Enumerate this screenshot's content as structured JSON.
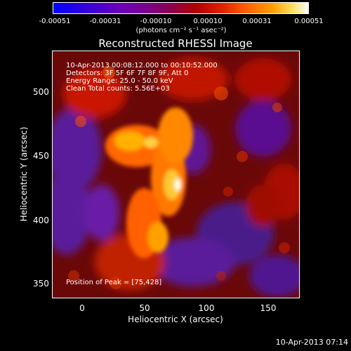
{
  "colorbar": {
    "ticks": [
      "-0.00051",
      "-0.00031",
      "-0.00010",
      "0.00010",
      "0.00031",
      "0.00051"
    ],
    "unit": "(photons cm⁻² s⁻¹ asec⁻²)"
  },
  "chart_data": {
    "type": "heatmap",
    "title": "Reconstructed RHESSI Image",
    "xlabel": "Heliocentric X (arcsec)",
    "ylabel": "Heliocentric Y (arcsec)",
    "xlim": [
      -20,
      170
    ],
    "ylim": [
      340,
      530
    ],
    "xticks": [
      "0",
      "50",
      "100",
      "150"
    ],
    "yticks": [
      "350",
      "400",
      "450",
      "500"
    ],
    "annotations": {
      "time_range": "10-Apr-2013 00:08:12.000 to 00:10:52.000",
      "detectors": "Detectors: 3F 5F 6F 7F 8F 9F, Att 0",
      "energy": "Energy Range: 25.0 - 50.0 keV",
      "clean": "Clean     Total counts: 5.56E+03",
      "peak": "Position of Peak = [75,428]"
    },
    "peak": {
      "x": 75,
      "y": 428
    },
    "colorscale_range": [
      -0.00051,
      0.00051
    ]
  },
  "footer": {
    "date": "10-Apr-2013 07:14"
  }
}
